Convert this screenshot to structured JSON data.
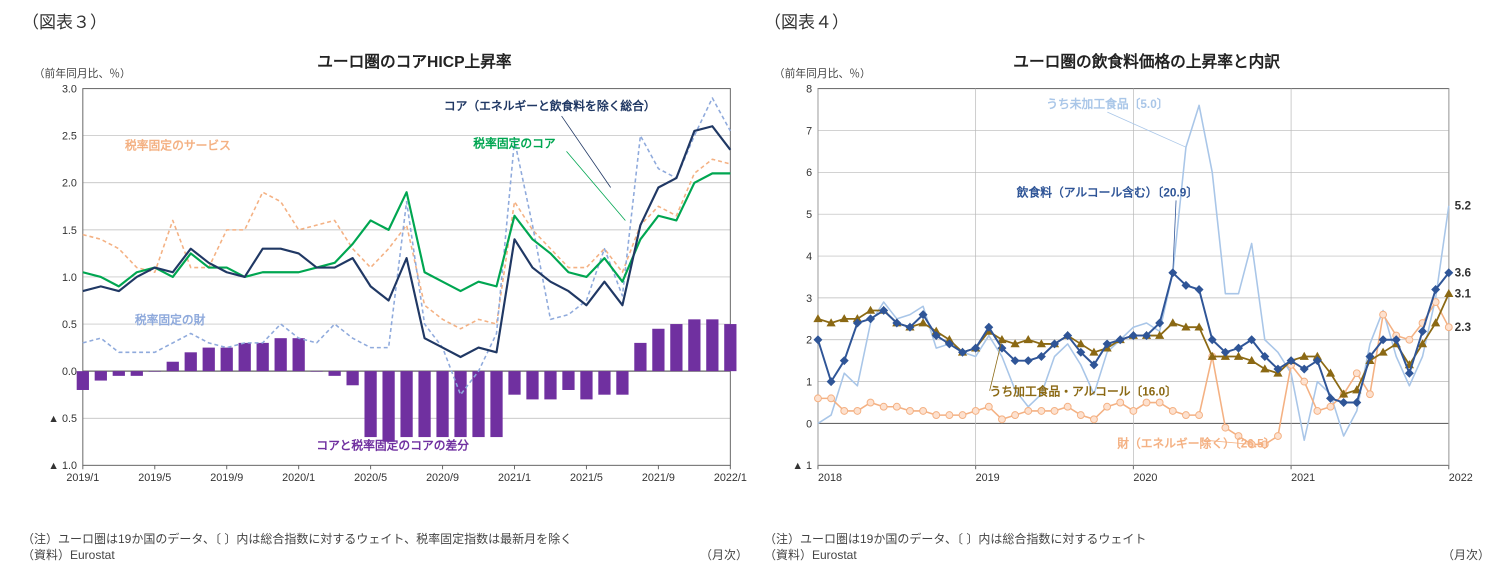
{
  "chart3": {
    "figureLabel": "（図表３）",
    "title": "ユーロ圏のコアHICP上昇率",
    "title_fontsize": 16,
    "axis_label": "（前年同月比、％）",
    "axis_label_fontsize": 11,
    "ylim": [
      -1.0,
      3.0
    ],
    "yticks": [
      -1.0,
      -0.5,
      0.0,
      0.5,
      1.0,
      1.5,
      2.0,
      2.5,
      3.0
    ],
    "ytick_labels": [
      "▲ 1.0",
      "▲ 0.5",
      "0.0",
      "0.5",
      "1.0",
      "1.5",
      "2.0",
      "2.5",
      "3.0"
    ],
    "xlabels": [
      "2019/1",
      "2019/5",
      "2019/9",
      "2020/1",
      "2020/5",
      "2020/9",
      "2021/1",
      "2021/5",
      "2021/9",
      "2022/1"
    ],
    "x_unit_label": "（月次）",
    "grid_color": "#b8b8b8",
    "axis_color": "#666666",
    "background": "#ffffff",
    "series": {
      "core": {
        "label": "コア（エネルギーと飲食料を除く総合）",
        "color": "#203864",
        "width": 2.2,
        "style": "solid",
        "data": [
          0.85,
          0.9,
          0.85,
          1.0,
          1.1,
          1.05,
          1.3,
          1.15,
          1.05,
          1.0,
          1.3,
          1.3,
          1.25,
          1.1,
          1.1,
          1.2,
          0.9,
          0.75,
          1.2,
          0.35,
          0.25,
          0.15,
          0.25,
          0.2,
          1.4,
          1.1,
          0.95,
          0.85,
          0.7,
          0.95,
          0.7,
          1.55,
          1.95,
          2.05,
          2.55,
          2.6,
          2.35
        ]
      },
      "core_fixed": {
        "label": "税率固定のコア",
        "color": "#00a651",
        "width": 2.2,
        "style": "solid",
        "data": [
          1.05,
          1.0,
          0.9,
          1.05,
          1.1,
          1.0,
          1.25,
          1.1,
          1.1,
          1.0,
          1.05,
          1.05,
          1.05,
          1.1,
          1.15,
          1.35,
          1.6,
          1.5,
          1.9,
          1.05,
          0.95,
          0.85,
          0.95,
          0.9,
          1.65,
          1.4,
          1.25,
          1.05,
          1.0,
          1.2,
          0.95,
          1.4,
          1.65,
          1.6,
          2.0,
          2.1,
          2.1
        ]
      },
      "services_fixed": {
        "label": "税率固定のサービス",
        "color": "#f4b183",
        "width": 1.6,
        "style": "dashed",
        "data": [
          1.45,
          1.4,
          1.3,
          1.1,
          1.05,
          1.6,
          1.1,
          1.1,
          1.5,
          1.5,
          1.9,
          1.8,
          1.5,
          1.55,
          1.6,
          1.3,
          1.1,
          1.3,
          1.55,
          0.7,
          0.55,
          0.45,
          0.55,
          0.5,
          1.8,
          1.5,
          1.3,
          1.1,
          1.1,
          1.3,
          1.05,
          1.55,
          1.75,
          1.65,
          2.1,
          2.25,
          2.2
        ]
      },
      "goods_fixed": {
        "label": "税率固定の財",
        "color": "#8faadc",
        "width": 1.6,
        "style": "dashed",
        "data": [
          0.3,
          0.35,
          0.2,
          0.2,
          0.2,
          0.3,
          0.4,
          0.3,
          0.25,
          0.3,
          0.3,
          0.5,
          0.35,
          0.3,
          0.5,
          0.35,
          0.25,
          0.25,
          1.8,
          0.5,
          0.25,
          -0.25,
          0.0,
          0.4,
          2.45,
          1.55,
          0.55,
          0.6,
          0.75,
          1.3,
          0.8,
          2.5,
          2.15,
          2.05,
          2.5,
          2.9,
          2.55
        ]
      },
      "diff_bars": {
        "label": "コアと税率固定のコアの差分",
        "color": "#7030a0",
        "data": [
          -0.2,
          -0.1,
          -0.05,
          -0.05,
          0.0,
          0.05,
          0.05,
          0.05,
          -0.05,
          0.0,
          0.25,
          0.25,
          0.2,
          0.0,
          -0.05,
          -0.15,
          -0.7,
          -0.75,
          -0.7,
          -0.7,
          -0.7,
          -0.7,
          -0.7,
          -0.7,
          -0.25,
          -0.3,
          -0.3,
          -0.2,
          -0.3,
          -0.25,
          -0.25,
          0.15,
          0.3,
          0.45,
          0.55,
          0.5,
          0.25
        ]
      },
      "diff_bars_pos": {
        "data": [
          -0.2,
          -0.1,
          -0.05,
          -0.05,
          0.0,
          0.1,
          0.2,
          0.25,
          0.25,
          0.3,
          0.3,
          0.35,
          0.35,
          0.0,
          -0.05,
          -0.15,
          -0.7,
          -0.75,
          -0.7,
          -0.7,
          -0.7,
          -0.7,
          -0.7,
          -0.7,
          -0.25,
          -0.3,
          -0.3,
          -0.2,
          -0.3,
          -0.25,
          -0.25,
          0.3,
          0.45,
          0.5,
          0.55,
          0.55,
          0.5
        ]
      }
    },
    "note1": "（注）ユーロ圏は19か国のデータ、〔 〕内は総合指数に対するウェイト、税率固定指数は最新月を除く",
    "note2": "（資料）Eurostat"
  },
  "chart4": {
    "figureLabel": "（図表４）",
    "title": "ユーロ圏の飲食料価格の上昇率と内訳",
    "title_fontsize": 16,
    "axis_label": "（前年同月比、％）",
    "axis_label_fontsize": 11,
    "ylim": [
      -1.0,
      8.0
    ],
    "yticks": [
      -1.0,
      0.0,
      1.0,
      2.0,
      3.0,
      4.0,
      5.0,
      6.0,
      7.0,
      8.0
    ],
    "ytick_labels": [
      "▲ 1",
      "0",
      "1",
      "2",
      "3",
      "4",
      "5",
      "6",
      "7",
      "8"
    ],
    "xlabels": [
      "2018",
      "2019",
      "2020",
      "2021",
      "2022"
    ],
    "x_unit_label": "（月次）",
    "grid_color": "#b8b8b8",
    "axis_color": "#666666",
    "background": "#ffffff",
    "endpoint_labels": [
      "5.2",
      "3.6",
      "3.1",
      "2.3"
    ],
    "series": {
      "unprocessed": {
        "label": "うち未加工食品〔5.0〕",
        "color": "#a9c6e8",
        "width": 1.6,
        "marker": "none",
        "data": [
          0.0,
          0.2,
          1.2,
          0.9,
          2.4,
          2.9,
          2.5,
          2.6,
          2.8,
          1.8,
          1.9,
          1.7,
          1.6,
          2.1,
          1.6,
          0.8,
          0.4,
          0.7,
          1.6,
          1.9,
          1.4,
          0.7,
          1.7,
          2.0,
          2.3,
          2.4,
          2.2,
          3.6,
          6.6,
          7.6,
          6.0,
          3.1,
          3.1,
          4.3,
          2.0,
          1.7,
          1.2,
          -0.4,
          1.0,
          0.7,
          -0.3,
          0.3,
          1.9,
          2.7,
          1.6,
          0.9,
          1.6,
          3.0,
          5.2
        ]
      },
      "food_total": {
        "label": "飲食料（アルコール含む）〔20.9〕",
        "color": "#2f5597",
        "width": 2.0,
        "marker": "diamond",
        "marker_fill": "#2f5597",
        "data": [
          2.0,
          1.0,
          1.5,
          2.4,
          2.5,
          2.7,
          2.4,
          2.3,
          2.6,
          2.1,
          1.9,
          1.7,
          1.8,
          2.3,
          1.8,
          1.5,
          1.5,
          1.6,
          1.9,
          2.1,
          1.7,
          1.4,
          1.9,
          2.0,
          2.1,
          2.1,
          2.4,
          3.6,
          3.3,
          3.2,
          2.0,
          1.7,
          1.8,
          2.0,
          1.6,
          1.3,
          1.5,
          1.3,
          1.5,
          0.6,
          0.5,
          0.5,
          1.6,
          2.0,
          2.0,
          1.2,
          2.2,
          3.2,
          3.6
        ]
      },
      "processed": {
        "label": "うち加工食品・アルコール〔16.0〕",
        "color": "#8b6914",
        "width": 1.8,
        "marker": "triangle",
        "marker_fill": "#8b6914",
        "data": [
          2.5,
          2.4,
          2.5,
          2.5,
          2.7,
          2.7,
          2.4,
          2.3,
          2.4,
          2.2,
          2.0,
          1.7,
          1.8,
          2.2,
          2.0,
          1.9,
          2.0,
          1.9,
          1.9,
          2.1,
          1.9,
          1.7,
          1.8,
          2.0,
          2.1,
          2.1,
          2.1,
          2.4,
          2.3,
          2.3,
          1.6,
          1.6,
          1.6,
          1.5,
          1.3,
          1.2,
          1.5,
          1.6,
          1.6,
          1.2,
          0.7,
          0.8,
          1.5,
          1.7,
          1.9,
          1.4,
          1.9,
          2.4,
          3.1
        ]
      },
      "goods_ex_energy": {
        "label": "財（エネルギー除く）〔26.5〕",
        "color": "#f4b183",
        "width": 1.6,
        "marker": "circle",
        "marker_fill": "#fde1cf",
        "data": [
          0.6,
          0.6,
          0.3,
          0.3,
          0.5,
          0.4,
          0.4,
          0.3,
          0.3,
          0.2,
          0.2,
          0.2,
          0.3,
          0.4,
          0.1,
          0.2,
          0.3,
          0.3,
          0.3,
          0.4,
          0.2,
          0.1,
          0.4,
          0.5,
          0.3,
          0.5,
          0.5,
          0.3,
          0.2,
          0.2,
          1.6,
          -0.1,
          -0.3,
          -0.5,
          -0.5,
          -0.3,
          1.4,
          1.0,
          0.3,
          0.4,
          0.7,
          1.2,
          0.7,
          2.6,
          2.1,
          2.0,
          2.4,
          2.9,
          2.3
        ]
      }
    },
    "note1": "（注）ユーロ圏は19か国のデータ、〔 〕内は総合指数に対するウェイト",
    "note2": "（資料）Eurostat"
  }
}
